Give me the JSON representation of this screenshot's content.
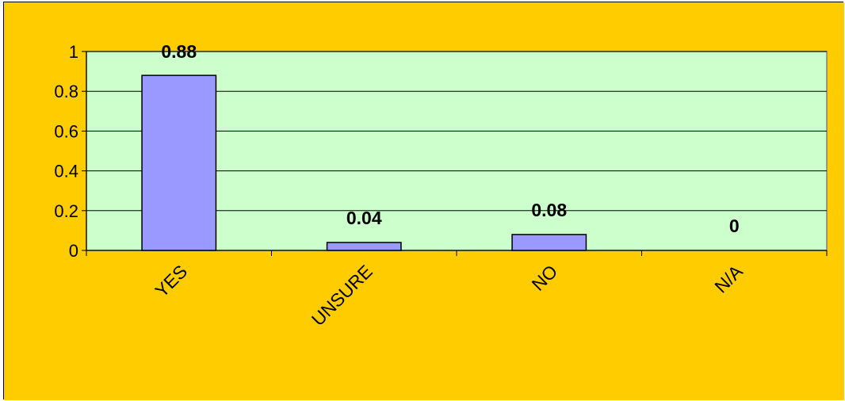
{
  "colors": {
    "background": "#FFCC00",
    "plot_area": "#CCFFCC",
    "bar_fill": "#9999FF",
    "bar_stroke": "#000000",
    "gridline": "#000000",
    "plot_border": "#808080"
  },
  "chart_data": {
    "type": "bar",
    "title": "",
    "xlabel": "",
    "ylabel": "",
    "categories": [
      "YES",
      "UNSURE",
      "NO",
      "N/A"
    ],
    "values": [
      0.88,
      0.04,
      0.08,
      0
    ],
    "data_labels": [
      "0.88",
      "0.04",
      "0.08",
      "0"
    ],
    "ylim": [
      0,
      1
    ],
    "yticks": [
      0,
      0.2,
      0.4,
      0.6,
      0.8,
      1
    ],
    "ytick_labels": [
      "0",
      "0.2",
      "0.4",
      "0.6",
      "0.8",
      "1"
    ],
    "grid": true,
    "legend": "none",
    "category_label_rotation": "-45"
  }
}
